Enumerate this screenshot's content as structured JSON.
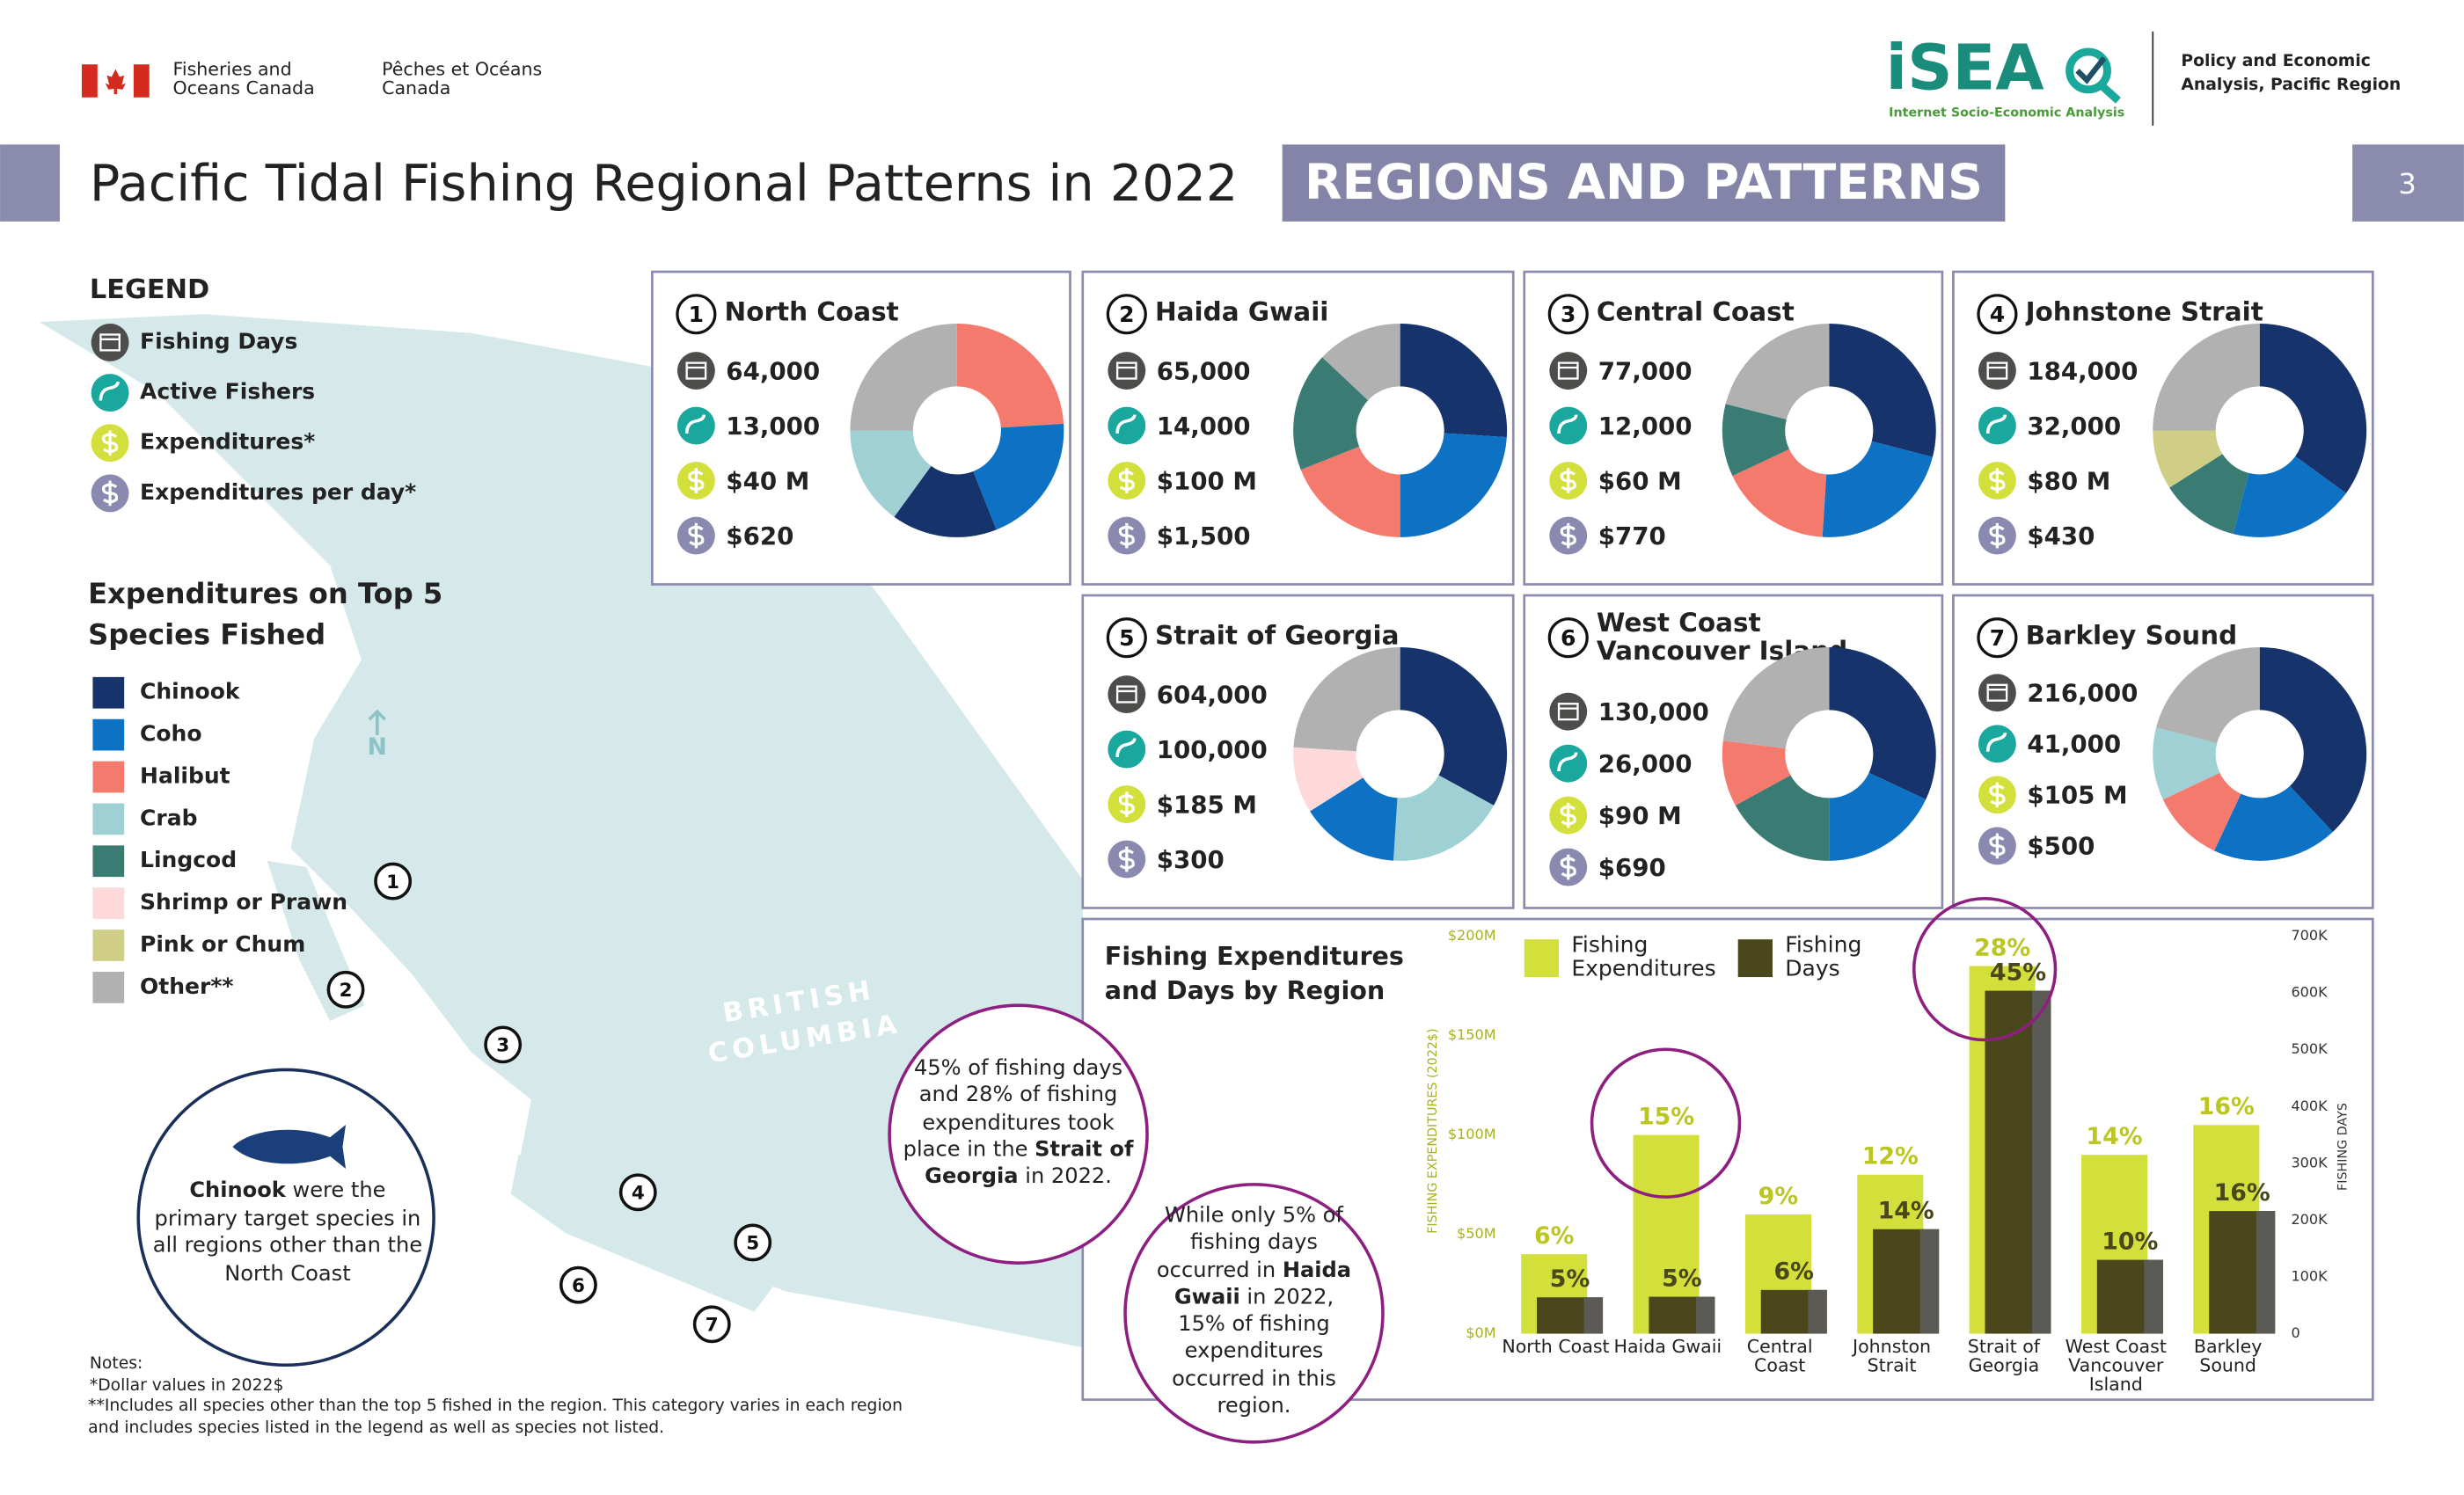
{
  "header": {
    "dept_en": "Fisheries and Oceans Canada",
    "dept_fr": "Pêches et Océans Canada",
    "logo": "iSEA",
    "logo_subtitle": "Internet Socio-Economic Analysis",
    "branch": "Policy and Economic Analysis, Pacific Region",
    "title": "Pacific Tidal Fishing Regional Patterns in 2022",
    "section": "REGIONS AND PATTERNS",
    "page": "3"
  },
  "legend": {
    "title": "LEGEND",
    "items": [
      {
        "label": "Fishing Days",
        "color": "#4d4d4b"
      },
      {
        "label": "Active Fishers",
        "color": "#1aa89e"
      },
      {
        "label": "Expenditures*",
        "color": "#d3df3a"
      },
      {
        "label": "Expenditures per day*",
        "color": "#8a8ab0"
      }
    ]
  },
  "species_legend": {
    "title": "Expenditures on Top 5 Species Fished",
    "items": [
      {
        "label": "Chinook",
        "color": "#17336b"
      },
      {
        "label": "Coho",
        "color": "#0e72c4"
      },
      {
        "label": "Halibut",
        "color": "#f57a6e"
      },
      {
        "label": "Crab",
        "color": "#9fd0d3"
      },
      {
        "label": "Lingcod",
        "color": "#3a7b74"
      },
      {
        "label": "Shrimp or Prawn",
        "color": "#fdd9da"
      },
      {
        "label": "Pink or Chum",
        "color": "#cfcd86"
      },
      {
        "label": "Other**",
        "color": "#b1b1b1"
      }
    ]
  },
  "map": {
    "label": "BRITISH COLUMBIA",
    "north": "N"
  },
  "regions": [
    {
      "number": "1",
      "name": "North Coast",
      "fishing_days": "64,000",
      "active_fishers": "13,000",
      "expenditures": "$40 M",
      "expenditures_per_day": "$620"
    },
    {
      "number": "2",
      "name": "Haida Gwaii",
      "fishing_days": "65,000",
      "active_fishers": "14,000",
      "expenditures": "$100 M",
      "expenditures_per_day": "$1,500"
    },
    {
      "number": "3",
      "name": "Central Coast",
      "fishing_days": "77,000",
      "active_fishers": "12,000",
      "expenditures": "$60 M",
      "expenditures_per_day": "$770"
    },
    {
      "number": "4",
      "name": "Johnstone Strait",
      "fishing_days": "184,000",
      "active_fishers": "32,000",
      "expenditures": "$80 M",
      "expenditures_per_day": "$430"
    },
    {
      "number": "5",
      "name": "Strait of Georgia",
      "fishing_days": "604,000",
      "active_fishers": "100,000",
      "expenditures": "$185 M",
      "expenditures_per_day": "$300"
    },
    {
      "number": "6",
      "name": "West Coast Vancouver Island",
      "fishing_days": "130,000",
      "active_fishers": "26,000",
      "expenditures": "$90 M",
      "expenditures_per_day": "$690"
    },
    {
      "number": "7",
      "name": "Barkley Sound",
      "fishing_days": "216,000",
      "active_fishers": "41,000",
      "expenditures": "$105 M",
      "expenditures_per_day": "$500"
    }
  ],
  "callouts": [
    {
      "parts": [
        "Chinook",
        " were the primary target species in all regions other than the North Coast"
      ]
    },
    {
      "parts": [
        "45% of fishing days and 28% of fishing expenditures took place in the ",
        "Strait of Georgia",
        " in 2022."
      ]
    },
    {
      "parts": [
        "While only 5% of fishing days occurred in ",
        "Haida Gwaii",
        " in 2022, 15% of fishing expenditures occurred in this region."
      ]
    }
  ],
  "notes": {
    "title": "Notes:",
    "lines": [
      "*Dollar values in 2022$",
      "**Includes all species other than the top 5 fished in the region. This category varies in each region and includes species listed in the legend as well as species not listed."
    ]
  },
  "chart_data": [
    {
      "type": "pie",
      "values": [
        24,
        20,
        16,
        15,
        25
      ],
      "colors": [
        "#f57a6e",
        "#0e72c4",
        "#17336b",
        "#9fd0d3",
        "#b1b1b1"
      ]
    },
    {
      "type": "pie",
      "values": [
        26,
        24,
        19,
        18,
        13
      ],
      "colors": [
        "#17336b",
        "#0e72c4",
        "#f57a6e",
        "#3a7b74",
        "#b1b1b1"
      ]
    },
    {
      "type": "pie",
      "values": [
        29,
        22,
        17,
        11,
        21
      ],
      "colors": [
        "#17336b",
        "#0e72c4",
        "#f57a6e",
        "#3a7b74",
        "#b1b1b1"
      ]
    },
    {
      "type": "pie",
      "values": [
        35,
        19,
        12,
        9,
        25
      ],
      "colors": [
        "#17336b",
        "#0e72c4",
        "#3a7b74",
        "#cfcd86",
        "#b1b1b1"
      ]
    },
    {
      "type": "pie",
      "values": [
        33,
        18,
        15,
        10,
        24
      ],
      "colors": [
        "#17336b",
        "#9fd0d3",
        "#0e72c4",
        "#fdd9da",
        "#b1b1b1"
      ]
    },
    {
      "type": "pie",
      "values": [
        32,
        18,
        17,
        10,
        23
      ],
      "colors": [
        "#17336b",
        "#0e72c4",
        "#3a7b74",
        "#f57a6e",
        "#b1b1b1"
      ]
    },
    {
      "type": "pie",
      "values": [
        38,
        19,
        11,
        11,
        21
      ],
      "colors": [
        "#17336b",
        "#0e72c4",
        "#f57a6e",
        "#9fd0d3",
        "#b1b1b1"
      ]
    },
    {
      "type": "bar",
      "title": "Fishing Expenditures and Days by Region",
      "categories": [
        "North Coast",
        "Haida Gwaii",
        "Central Coast",
        "Johnston Strait",
        "Strait of Georgia",
        "West Coast Vancouver Island",
        "Barkley Sound"
      ],
      "series": [
        {
          "name": "Fishing Expenditures",
          "color": "#d3df3a",
          "values": [
            40,
            100,
            60,
            80,
            185,
            90,
            105
          ],
          "share_labels": [
            "6%",
            "15%",
            "9%",
            "12%",
            "28%",
            "14%",
            "16%"
          ]
        },
        {
          "name": "Fishing Days",
          "color": "#4a471c",
          "axis": "y2",
          "values": [
            64000,
            65000,
            77000,
            184000,
            604000,
            130000,
            216000
          ],
          "share_labels": [
            "5%",
            "5%",
            "6%",
            "14%",
            "45%",
            "10%",
            "16%"
          ]
        }
      ],
      "ylabel": "FISHING EXPENDITURES (2022$)",
      "y2label": "FISHING DAYS",
      "ylim": [
        0,
        200
      ],
      "yticks": [
        {
          "value": 0,
          "label": "$0M"
        },
        {
          "value": 50,
          "label": "$50M"
        },
        {
          "value": 100,
          "label": "$100M"
        },
        {
          "value": 150,
          "label": "$150M"
        },
        {
          "value": 200,
          "label": "$200M"
        }
      ],
      "y2lim": [
        0,
        700000
      ],
      "y2ticks": [
        0,
        {
          "value": 100000,
          "label": "100K"
        },
        {
          "value": 200000,
          "label": "200K"
        },
        {
          "value": 300000,
          "label": "300K"
        },
        {
          "value": 400000,
          "label": "400K"
        },
        {
          "value": 500000,
          "label": "500K"
        },
        {
          "value": 600000,
          "label": "600K"
        },
        {
          "value": 700000,
          "label": "700K"
        }
      ]
    }
  ]
}
